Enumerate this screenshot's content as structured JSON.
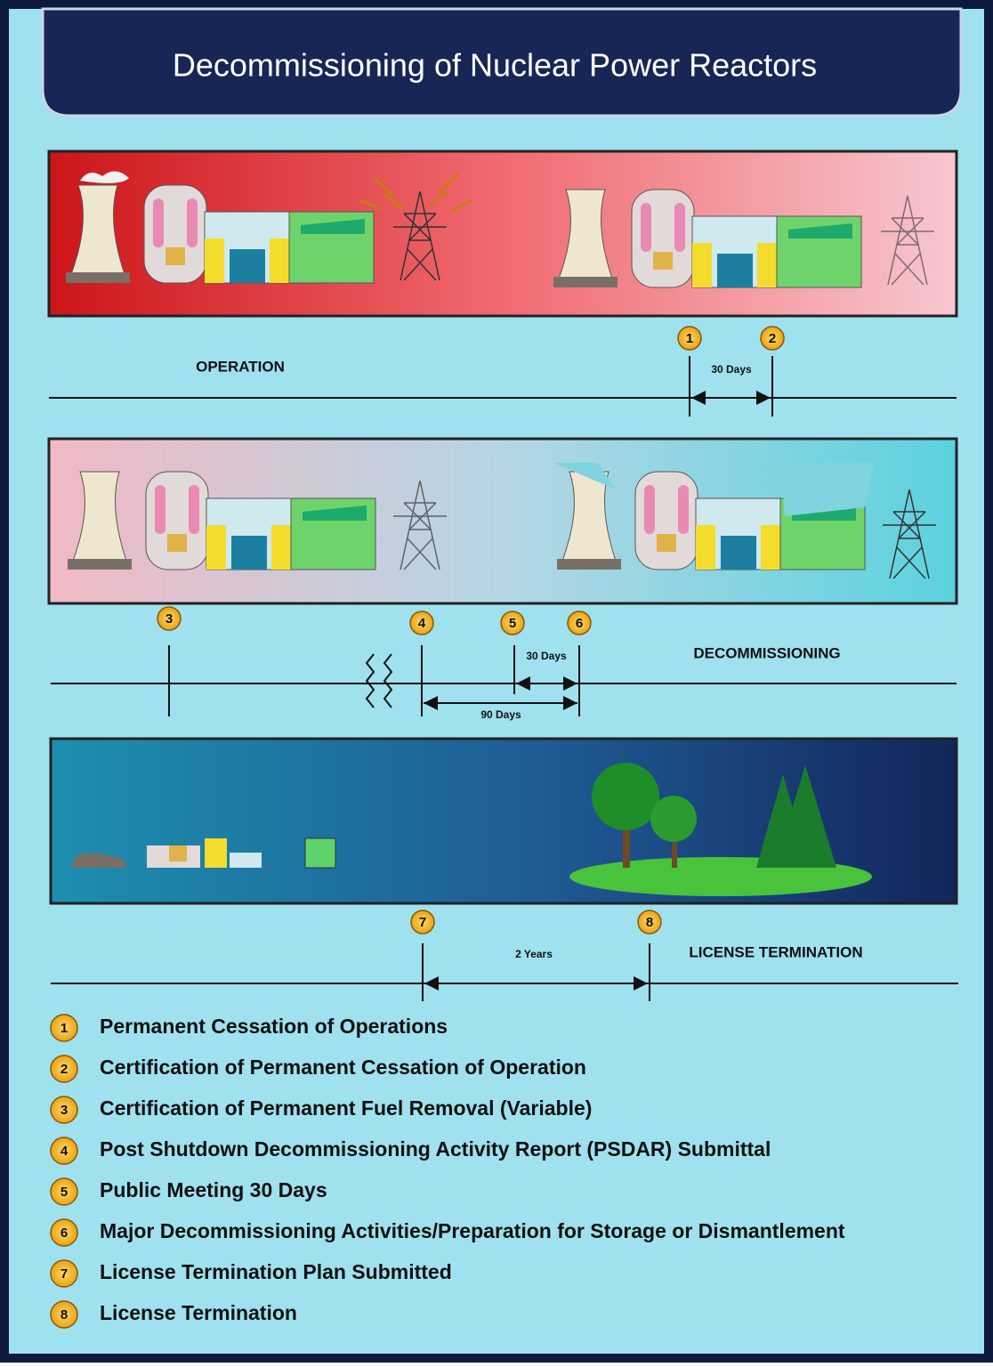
{
  "title": "Decommissioning of Nuclear Power Reactors",
  "phases": [
    {
      "label": "OPERATION",
      "intervals": [
        "30 Days"
      ]
    },
    {
      "label": "DECOMMISSIONING",
      "intervals": [
        "30 Days",
        "90 Days"
      ]
    },
    {
      "label": "LICENSE TERMINATION",
      "intervals": [
        "2 Years"
      ]
    }
  ],
  "legend": [
    {
      "number": 1,
      "text": "Permanent Cessation of Operations"
    },
    {
      "number": 2,
      "text": "Certification of Permanent Cessation of Operation"
    },
    {
      "number": 3,
      "text": "Certification of Permanent Fuel Removal (Variable)"
    },
    {
      "number": 4,
      "text": "Post Shutdown Decommissioning Activity Report (PSDAR) Submittal"
    },
    {
      "number": 5,
      "text": "Public Meeting 30 Days"
    },
    {
      "number": 6,
      "text": "Major Decommissioning Activities/Preparation for Storage or Dismantlement"
    },
    {
      "number": 7,
      "text": "License Termination Plan Submitted"
    },
    {
      "number": 8,
      "text": "License Termination"
    }
  ]
}
